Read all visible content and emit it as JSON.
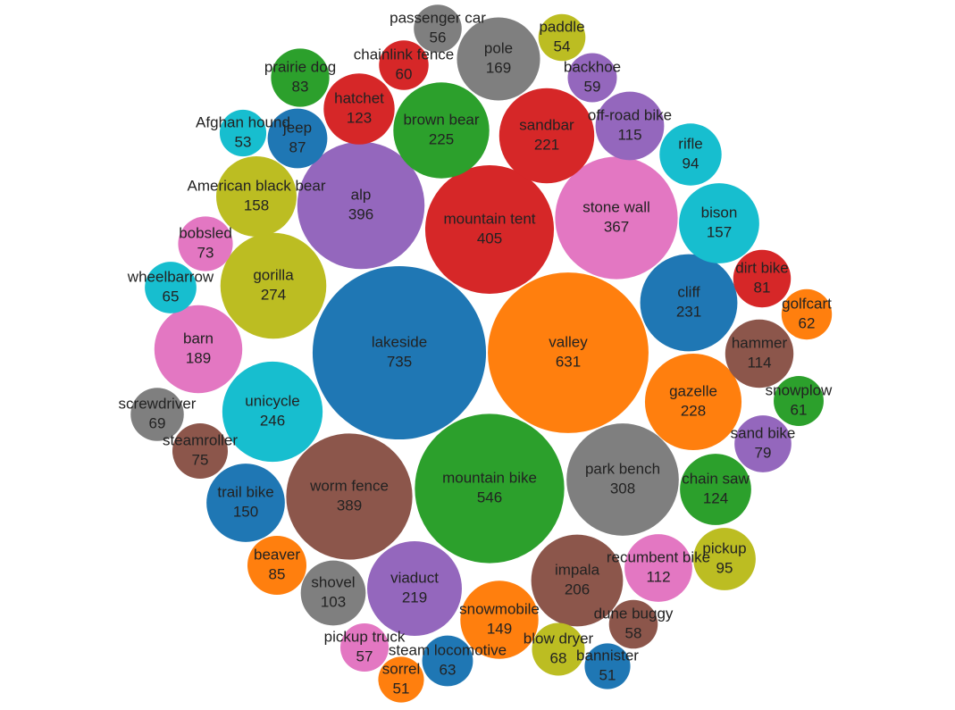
{
  "chart_data": {
    "type": "bubble",
    "categories": [
      "lakeside",
      "valley",
      "mountain bike",
      "mountain tent",
      "alp",
      "worm fence",
      "stone wall",
      "park bench",
      "gorilla",
      "unicycle",
      "cliff",
      "gazelle",
      "brown bear",
      "sandbar",
      "viaduct",
      "impala",
      "barn",
      "pole",
      "American black bear",
      "bison",
      "trail bike",
      "snowmobile",
      "chain saw",
      "hatchet",
      "off-road bike",
      "hammer",
      "recumbent bike",
      "shovel",
      "pickup",
      "rifle",
      "jeep",
      "beaver",
      "prairie dog",
      "dirt bike",
      "sand bike",
      "steamroller",
      "bobsled",
      "screwdriver",
      "blow dryer",
      "wheelbarrow",
      "steam locomotive",
      "golfcart",
      "snowplow",
      "chainlink fence",
      "backhoe",
      "dune buggy",
      "pickup truck",
      "passenger car",
      "paddle",
      "Afghan hound",
      "bannister",
      "sorrel"
    ],
    "values": [
      735,
      631,
      546,
      405,
      396,
      389,
      367,
      308,
      274,
      246,
      231,
      228,
      225,
      221,
      219,
      206,
      189,
      169,
      158,
      157,
      150,
      149,
      124,
      123,
      115,
      114,
      112,
      103,
      95,
      94,
      87,
      85,
      83,
      81,
      79,
      75,
      73,
      69,
      68,
      65,
      63,
      62,
      61,
      60,
      59,
      58,
      57,
      56,
      54,
      53,
      51,
      51
    ],
    "colors": [
      "#1f77b4",
      "#ff7f0e",
      "#2ca02c",
      "#d62728",
      "#9467bd",
      "#8c564b",
      "#e377c2",
      "#7f7f7f",
      "#bcbd22",
      "#17becf"
    ]
  }
}
